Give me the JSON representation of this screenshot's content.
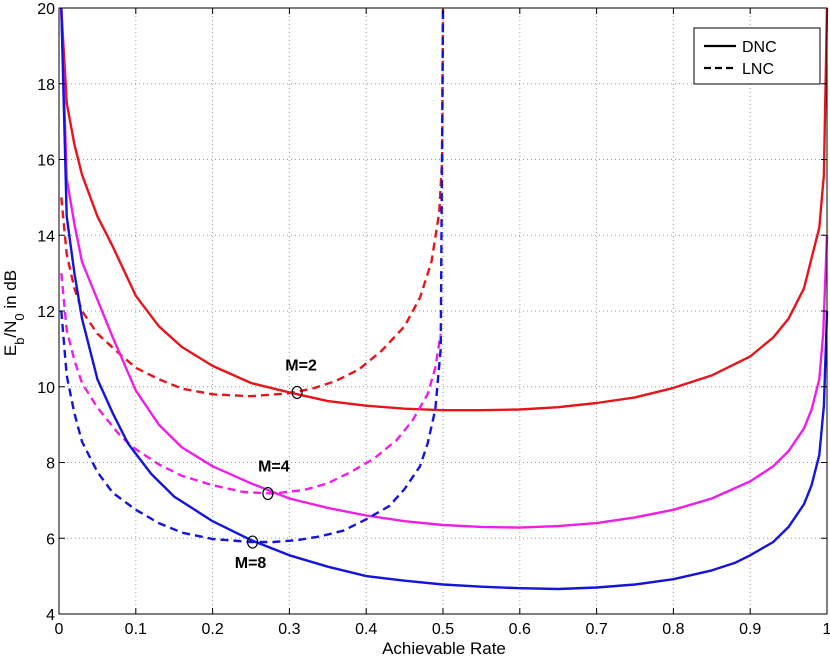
{
  "chart_data": {
    "type": "line",
    "xlabel": "Achievable Rate",
    "ylabel_main": "E",
    "ylabel_sub1": "b",
    "ylabel_mid": "/N",
    "ylabel_sub2": "0",
    "ylabel_tail": " in dB",
    "xlim": [
      0,
      1
    ],
    "ylim": [
      4,
      20
    ],
    "xticks": [
      0,
      0.1,
      0.2,
      0.3,
      0.4,
      0.5,
      0.6,
      0.7,
      0.8,
      0.9,
      1
    ],
    "xtick_labels": [
      "0",
      "0.1",
      "0.2",
      "0.3",
      "0.4",
      "0.5",
      "0.6",
      "0.7",
      "0.8",
      "0.9",
      "1"
    ],
    "yticks": [
      4,
      6,
      8,
      10,
      12,
      14,
      16,
      18,
      20
    ],
    "ytick_labels": [
      "4",
      "6",
      "8",
      "10",
      "12",
      "14",
      "16",
      "18",
      "20"
    ],
    "grid": true,
    "legend_position": "top-right",
    "legend": [
      {
        "label": "DNC",
        "style": "solid"
      },
      {
        "label": "LNC",
        "style": "dashed"
      }
    ],
    "series": [
      {
        "group": "M=2",
        "style": "solid",
        "color": "#e8141c",
        "points": [
          [
            0.003,
            20
          ],
          [
            0.01,
            17.5
          ],
          [
            0.02,
            16.4
          ],
          [
            0.03,
            15.6
          ],
          [
            0.05,
            14.5
          ],
          [
            0.07,
            13.7
          ],
          [
            0.1,
            12.4
          ],
          [
            0.13,
            11.6
          ],
          [
            0.16,
            11.05
          ],
          [
            0.2,
            10.55
          ],
          [
            0.25,
            10.1
          ],
          [
            0.3,
            9.85
          ],
          [
            0.35,
            9.62
          ],
          [
            0.4,
            9.5
          ],
          [
            0.45,
            9.42
          ],
          [
            0.5,
            9.38
          ],
          [
            0.55,
            9.38
          ],
          [
            0.6,
            9.4
          ],
          [
            0.65,
            9.46
          ],
          [
            0.7,
            9.57
          ],
          [
            0.75,
            9.72
          ],
          [
            0.8,
            9.97
          ],
          [
            0.85,
            10.3
          ],
          [
            0.9,
            10.8
          ],
          [
            0.93,
            11.3
          ],
          [
            0.95,
            11.8
          ],
          [
            0.97,
            12.6
          ],
          [
            0.98,
            13.4
          ],
          [
            0.99,
            14.2
          ],
          [
            0.996,
            15.6
          ],
          [
            1.0,
            20
          ]
        ]
      },
      {
        "group": "M=2",
        "style": "dashed",
        "color": "#e8141c",
        "points": [
          [
            0.003,
            15
          ],
          [
            0.01,
            13.5
          ],
          [
            0.02,
            12.6
          ],
          [
            0.03,
            12.0
          ],
          [
            0.05,
            11.4
          ],
          [
            0.08,
            10.85
          ],
          [
            0.1,
            10.5
          ],
          [
            0.13,
            10.2
          ],
          [
            0.16,
            9.95
          ],
          [
            0.2,
            9.8
          ],
          [
            0.25,
            9.75
          ],
          [
            0.3,
            9.83
          ],
          [
            0.33,
            9.95
          ],
          [
            0.36,
            10.15
          ],
          [
            0.39,
            10.45
          ],
          [
            0.42,
            10.95
          ],
          [
            0.45,
            11.6
          ],
          [
            0.47,
            12.35
          ],
          [
            0.485,
            13.3
          ],
          [
            0.495,
            14.6
          ],
          [
            0.499,
            16
          ],
          [
            0.5,
            20
          ]
        ]
      },
      {
        "group": "M=4",
        "style": "solid",
        "color": "#ee1ee8",
        "points": [
          [
            0.003,
            20
          ],
          [
            0.01,
            15.5
          ],
          [
            0.02,
            14.3
          ],
          [
            0.03,
            13.3
          ],
          [
            0.05,
            12.3
          ],
          [
            0.07,
            11.3
          ],
          [
            0.1,
            9.9
          ],
          [
            0.13,
            9.0
          ],
          [
            0.16,
            8.4
          ],
          [
            0.2,
            7.9
          ],
          [
            0.25,
            7.45
          ],
          [
            0.3,
            7.05
          ],
          [
            0.35,
            6.8
          ],
          [
            0.4,
            6.6
          ],
          [
            0.45,
            6.45
          ],
          [
            0.5,
            6.35
          ],
          [
            0.55,
            6.3
          ],
          [
            0.6,
            6.28
          ],
          [
            0.65,
            6.32
          ],
          [
            0.7,
            6.4
          ],
          [
            0.75,
            6.55
          ],
          [
            0.8,
            6.75
          ],
          [
            0.85,
            7.05
          ],
          [
            0.9,
            7.5
          ],
          [
            0.93,
            7.9
          ],
          [
            0.95,
            8.3
          ],
          [
            0.97,
            8.9
          ],
          [
            0.98,
            9.4
          ],
          [
            0.99,
            10.2
          ],
          [
            0.995,
            11.4
          ],
          [
            1.0,
            14
          ]
        ]
      },
      {
        "group": "M=4",
        "style": "dashed",
        "color": "#ee1ee8",
        "points": [
          [
            0.003,
            13
          ],
          [
            0.01,
            11.5
          ],
          [
            0.02,
            10.7
          ],
          [
            0.03,
            10.1
          ],
          [
            0.05,
            9.45
          ],
          [
            0.08,
            8.7
          ],
          [
            0.1,
            8.35
          ],
          [
            0.13,
            7.95
          ],
          [
            0.16,
            7.65
          ],
          [
            0.2,
            7.4
          ],
          [
            0.24,
            7.22
          ],
          [
            0.28,
            7.18
          ],
          [
            0.32,
            7.28
          ],
          [
            0.35,
            7.45
          ],
          [
            0.38,
            7.75
          ],
          [
            0.41,
            8.1
          ],
          [
            0.44,
            8.6
          ],
          [
            0.46,
            9.1
          ],
          [
            0.48,
            9.8
          ],
          [
            0.49,
            10.5
          ],
          [
            0.497,
            11.4
          ]
        ]
      },
      {
        "group": "M=8",
        "style": "solid",
        "color": "#1414dc",
        "points": [
          [
            0.003,
            20
          ],
          [
            0.01,
            14.5
          ],
          [
            0.02,
            13.0
          ],
          [
            0.03,
            11.8
          ],
          [
            0.05,
            10.2
          ],
          [
            0.07,
            9.3
          ],
          [
            0.09,
            8.5
          ],
          [
            0.12,
            7.7
          ],
          [
            0.15,
            7.1
          ],
          [
            0.2,
            6.45
          ],
          [
            0.25,
            5.95
          ],
          [
            0.3,
            5.55
          ],
          [
            0.35,
            5.25
          ],
          [
            0.4,
            5.0
          ],
          [
            0.45,
            4.88
          ],
          [
            0.5,
            4.78
          ],
          [
            0.55,
            4.72
          ],
          [
            0.6,
            4.68
          ],
          [
            0.65,
            4.66
          ],
          [
            0.7,
            4.7
          ],
          [
            0.75,
            4.78
          ],
          [
            0.8,
            4.92
          ],
          [
            0.85,
            5.15
          ],
          [
            0.88,
            5.35
          ],
          [
            0.9,
            5.55
          ],
          [
            0.93,
            5.9
          ],
          [
            0.95,
            6.3
          ],
          [
            0.97,
            6.9
          ],
          [
            0.98,
            7.4
          ],
          [
            0.99,
            8.2
          ],
          [
            0.996,
            9.5
          ],
          [
            1.0,
            12
          ]
        ]
      },
      {
        "group": "M=8",
        "style": "dashed",
        "color": "#1414dc",
        "points": [
          [
            0.003,
            12
          ],
          [
            0.01,
            10.3
          ],
          [
            0.02,
            9.3
          ],
          [
            0.03,
            8.55
          ],
          [
            0.05,
            7.75
          ],
          [
            0.07,
            7.2
          ],
          [
            0.1,
            6.75
          ],
          [
            0.13,
            6.4
          ],
          [
            0.16,
            6.15
          ],
          [
            0.2,
            5.98
          ],
          [
            0.25,
            5.9
          ],
          [
            0.28,
            5.9
          ],
          [
            0.31,
            5.95
          ],
          [
            0.34,
            6.05
          ],
          [
            0.37,
            6.2
          ],
          [
            0.4,
            6.5
          ],
          [
            0.43,
            6.85
          ],
          [
            0.45,
            7.3
          ],
          [
            0.47,
            7.9
          ],
          [
            0.48,
            8.5
          ],
          [
            0.49,
            9.4
          ],
          [
            0.497,
            11.0
          ],
          [
            0.5,
            20
          ]
        ]
      }
    ],
    "annotations": [
      {
        "label": "M=2",
        "marker": [
          0.31,
          9.85
        ]
      },
      {
        "label": "M=4",
        "marker": [
          0.272,
          7.18
        ]
      },
      {
        "label": "M=8",
        "marker": [
          0.252,
          5.9
        ]
      }
    ]
  }
}
